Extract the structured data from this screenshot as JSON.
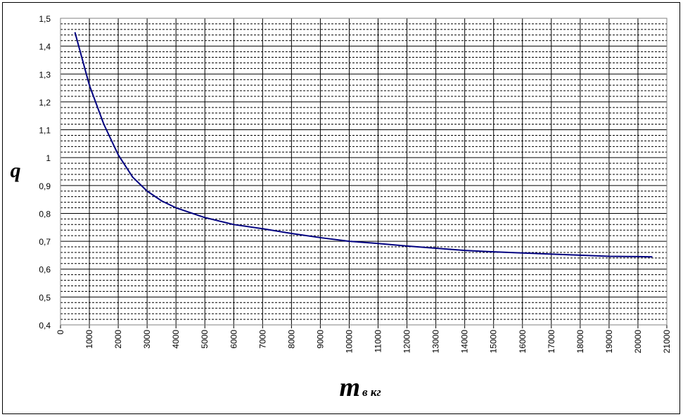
{
  "chart_data": {
    "type": "line",
    "y_label": "q",
    "x_label": "m",
    "x_label_unit": "в кг",
    "x": [
      500,
      1000,
      1500,
      2000,
      2500,
      3000,
      3500,
      4000,
      5000,
      6000,
      7000,
      8000,
      9000,
      10000,
      11000,
      12000,
      13000,
      14000,
      15000,
      16000,
      17000,
      18000,
      19000,
      20000,
      20500
    ],
    "series": [
      {
        "color": "#000080",
        "values": [
          1.45,
          1.26,
          1.12,
          1.01,
          0.93,
          0.88,
          0.845,
          0.82,
          0.785,
          0.76,
          0.745,
          0.728,
          0.713,
          0.7,
          0.692,
          0.683,
          0.675,
          0.667,
          0.662,
          0.658,
          0.654,
          0.65,
          0.646,
          0.645,
          0.644
        ]
      }
    ],
    "xlim": [
      0,
      21000
    ],
    "xticks": [
      0,
      1000,
      2000,
      3000,
      4000,
      5000,
      6000,
      7000,
      8000,
      9000,
      10000,
      11000,
      12000,
      13000,
      14000,
      15000,
      16000,
      17000,
      18000,
      19000,
      20000,
      21000
    ],
    "ylim": [
      0.4,
      1.5
    ],
    "yticks": [
      {
        "value": 0.4,
        "label": "0,4"
      },
      {
        "value": 0.5,
        "label": "0,5"
      },
      {
        "value": 0.6,
        "label": "0,6"
      },
      {
        "value": 0.7,
        "label": "0,7"
      },
      {
        "value": 0.8,
        "label": "0,8"
      },
      {
        "value": 0.9,
        "label": "0,9"
      },
      1,
      {
        "value": 1.1,
        "label": "1,1"
      },
      {
        "value": 1.2,
        "label": "1,2"
      },
      {
        "value": 1.3,
        "label": "1,3"
      },
      {
        "value": 1.4,
        "label": "1,4"
      },
      {
        "value": 1.5,
        "label": "1,5"
      }
    ],
    "grid": true
  }
}
